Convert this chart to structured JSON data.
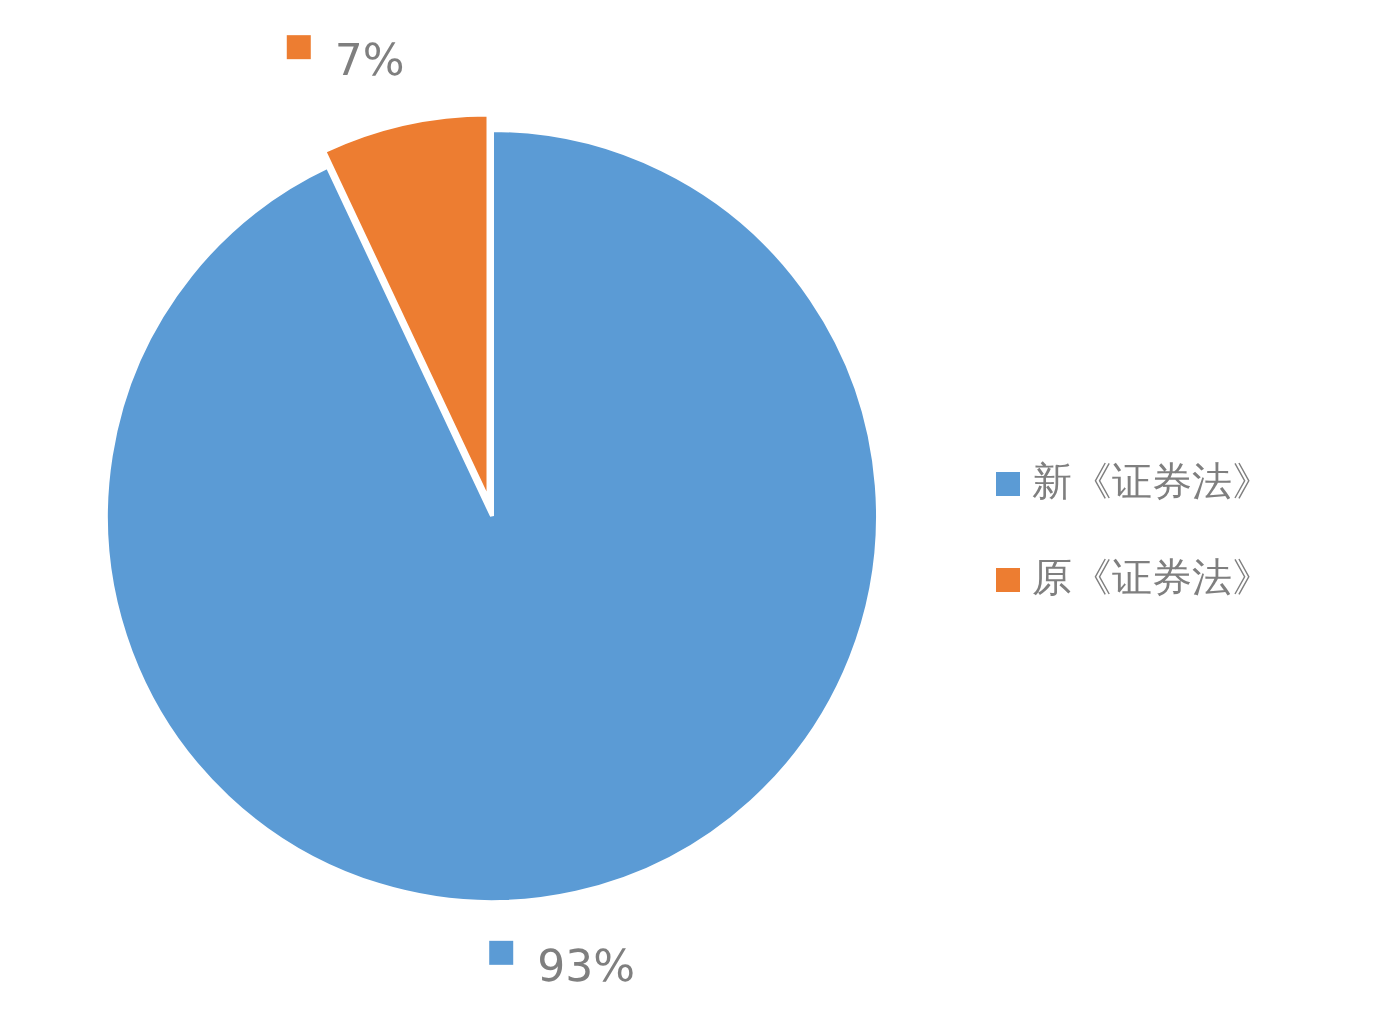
{
  "chart_data": {
    "type": "pie",
    "categories": [
      "新《证券法》",
      "原《证券法》"
    ],
    "values": [
      93,
      7
    ],
    "colors": [
      "#5b9bd5",
      "#ed7d31"
    ],
    "value_labels": [
      "93%",
      "7%"
    ],
    "legend": "right"
  }
}
